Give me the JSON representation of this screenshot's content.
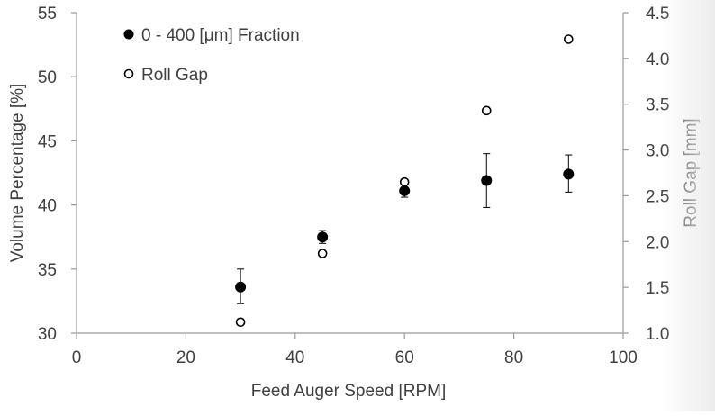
{
  "chart_data": {
    "type": "scatter",
    "title": "",
    "xlabel": "Feed Auger Speed [RPM]",
    "ylabel_left": "Volume Percentage [%]",
    "ylabel_right": "Roll Gap [mm]",
    "xlim": [
      0,
      100
    ],
    "ylim_left": [
      30,
      55
    ],
    "ylim_right": [
      1.0,
      4.5
    ],
    "x_ticks": [
      "0",
      "20",
      "40",
      "60",
      "80",
      "100"
    ],
    "y_left_ticks": [
      "30",
      "35",
      "40",
      "45",
      "50",
      "55"
    ],
    "y_right_ticks": [
      "1.0",
      "1.5",
      "2.0",
      "2.5",
      "3.0",
      "3.5",
      "4.0",
      "4.5"
    ],
    "grid": false,
    "legend_position": "top-left",
    "series": [
      {
        "name": "0 - 400 [μm] Fraction",
        "axis": "left",
        "marker": "filled-circle",
        "color": "#000000",
        "x": [
          30,
          45,
          60,
          75,
          90
        ],
        "y": [
          33.6,
          37.5,
          41.1,
          41.9,
          42.4
        ],
        "error_low": [
          1.3,
          0.5,
          0.5,
          2.1,
          1.4
        ],
        "error_high": [
          1.4,
          0.5,
          0.6,
          2.1,
          1.5
        ]
      },
      {
        "name": "Roll Gap",
        "axis": "right",
        "marker": "open-circle",
        "color": "#000000",
        "x": [
          30,
          45,
          60,
          75,
          90
        ],
        "y": [
          1.12,
          1.87,
          2.65,
          3.43,
          4.21
        ]
      }
    ]
  }
}
